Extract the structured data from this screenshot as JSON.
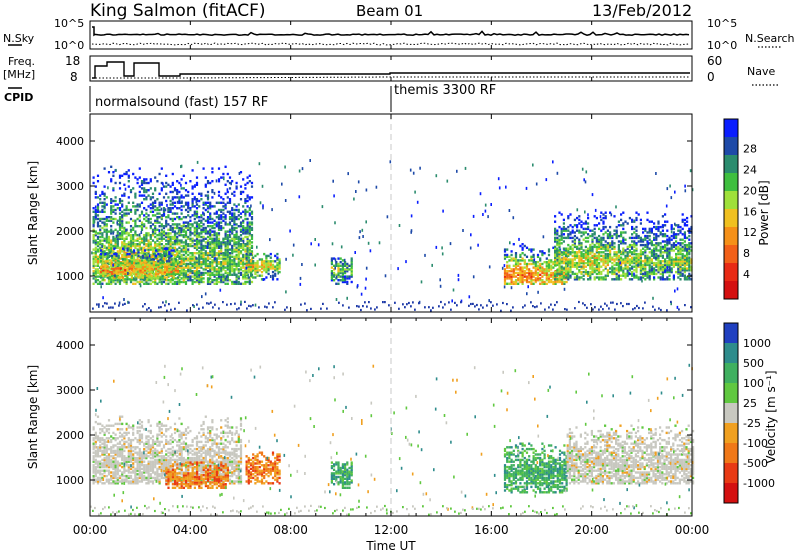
{
  "header": {
    "title": "King Salmon (fitACF)",
    "beam": "Beam 01",
    "date": "13/Feb/2012"
  },
  "noise_panel": {
    "left_label": "N.Sky",
    "left_ticks": [
      "10^5",
      "10^0"
    ],
    "right_label": "N.Search",
    "right_ticks": [
      "10^5",
      "10^0"
    ]
  },
  "freq_panel": {
    "left_label_1": "Freq.",
    "left_label_2": "[MHz]",
    "left_ticks": [
      "18",
      "8"
    ],
    "right_label": "Nave",
    "right_ticks": [
      "60",
      "0"
    ]
  },
  "cpid_panel": {
    "label": "CPID",
    "modes": [
      "normalsound (fast) 157 RF",
      "themis 3300 RF"
    ]
  },
  "chart_data": [
    {
      "type": "heatmap",
      "name": "power",
      "ylabel": "Slant Range [km]",
      "yticks": [
        "1000",
        "2000",
        "3000",
        "4000"
      ],
      "ylim": [
        200,
        4600
      ],
      "xlim_hours": [
        0,
        24
      ],
      "colorbar_label": "Power [dB]",
      "colorbar_ticks": [
        "4",
        "8",
        "12",
        "16",
        "20",
        "24",
        "28"
      ],
      "colorbar_colors": [
        "#0a1eff",
        "#1e4aa8",
        "#2b8c6e",
        "#3fbf3f",
        "#9fe03a",
        "#f0c020",
        "#f59018",
        "#f26018",
        "#e82a14",
        "#d41010"
      ],
      "echo_regions": [
        {
          "t0": 0.1,
          "t1": 6.5,
          "r0": 800,
          "r1": 3600,
          "center_km": 1300,
          "level": 0.45
        },
        {
          "t0": 0.4,
          "t1": 3.5,
          "r0": 900,
          "r1": 1600,
          "center_km": 1100,
          "level": 0.65
        },
        {
          "t0": 6.2,
          "t1": 7.6,
          "r0": 900,
          "r1": 1500,
          "center_km": 1200,
          "level": 0.55
        },
        {
          "t0": 9.6,
          "t1": 10.4,
          "r0": 800,
          "r1": 1400,
          "center_km": 1100,
          "level": 0.4
        },
        {
          "t0": 16.5,
          "t1": 19.0,
          "r0": 800,
          "r1": 1800,
          "center_km": 1000,
          "level": 0.7
        },
        {
          "t0": 18.5,
          "t1": 24.0,
          "r0": 900,
          "r1": 2400,
          "center_km": 1300,
          "level": 0.45
        }
      ]
    },
    {
      "type": "heatmap",
      "name": "velocity",
      "ylabel": "Slant Range [km]",
      "yticks": [
        "1000",
        "2000",
        "3000",
        "4000"
      ],
      "ylim": [
        200,
        4600
      ],
      "xlim_hours": [
        0,
        24
      ],
      "colorbar_label": "Velocity [m s⁻¹]",
      "colorbar_ticks": [
        "1000",
        "500",
        "100",
        "25",
        "-25",
        "-100",
        "-500",
        "-1000"
      ],
      "colorbar_colors": [
        "#2040c0",
        "#2e8c8c",
        "#40b060",
        "#60c840",
        "#c8c8c0",
        "#f0a020",
        "#f07818",
        "#e83a14",
        "#d41010"
      ],
      "echo_regions": [
        {
          "t0": 0.1,
          "t1": 6.0,
          "r0": 900,
          "r1": 2400,
          "center_km": 1300,
          "vel": "ground"
        },
        {
          "t0": 3.0,
          "t1": 5.5,
          "r0": 800,
          "r1": 1400,
          "center_km": 1000,
          "vel": "neg"
        },
        {
          "t0": 6.2,
          "t1": 7.6,
          "r0": 900,
          "r1": 1600,
          "center_km": 1200,
          "vel": "neg"
        },
        {
          "t0": 9.6,
          "t1": 10.4,
          "r0": 800,
          "r1": 1400,
          "center_km": 1100,
          "vel": "pos"
        },
        {
          "t0": 16.5,
          "t1": 19.0,
          "r0": 700,
          "r1": 1800,
          "center_km": 1100,
          "vel": "pos"
        },
        {
          "t0": 19.0,
          "t1": 24.0,
          "r0": 900,
          "r1": 2200,
          "center_km": 1300,
          "vel": "ground"
        }
      ]
    }
  ],
  "x_axis": {
    "ticks": [
      "00:00",
      "04:00",
      "08:00",
      "12:00",
      "16:00",
      "20:00",
      "00:00"
    ],
    "label": "Time UT"
  }
}
